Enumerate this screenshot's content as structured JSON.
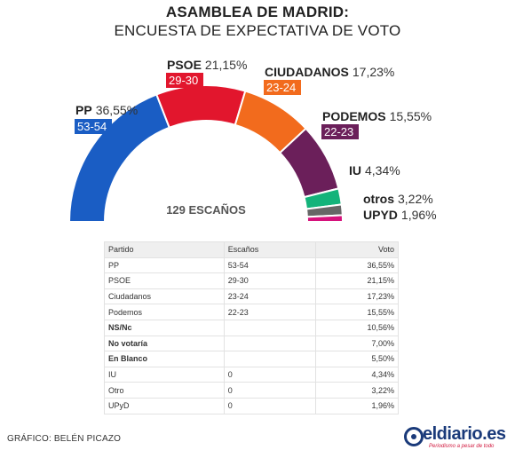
{
  "header": {
    "title": "ASAMBLEA DE MADRID:",
    "subtitle": "ENCUESTA DE EXPECTATIVA DE VOTO"
  },
  "chart_data": {
    "type": "parliament-semicircle",
    "total_label": "129 ESCAÑOS",
    "total_seats": 129,
    "series": [
      {
        "name": "PP",
        "seats": "53-54",
        "seat_share": 53.5,
        "vote": "36,55%",
        "color": "#1a5dc4"
      },
      {
        "name": "PSOE",
        "seats": "29-30",
        "seat_share": 29.5,
        "vote": "21,15%",
        "color": "#e2162d"
      },
      {
        "name": "CIUDADANOS",
        "seats": "23-24",
        "seat_share": 23.5,
        "vote": "17,23%",
        "color": "#f26b1d"
      },
      {
        "name": "PODEMOS",
        "seats": "22-23",
        "seat_share": 22.5,
        "vote": "15,55%",
        "color": "#6b1f5a"
      },
      {
        "name": "IU",
        "seats": "",
        "seat_share": 5.3,
        "vote": "4,34%",
        "color": "#13b37a"
      },
      {
        "name": "otros",
        "seats": "",
        "seat_share": 3.5,
        "vote": "3,22%",
        "color": "#666666"
      },
      {
        "name": "UPYD",
        "seats": "",
        "seat_share": 2.2,
        "vote": "1,96%",
        "color": "#d6127c"
      }
    ]
  },
  "table": {
    "headers": [
      "Partido",
      "Escaños",
      "Voto"
    ],
    "rows": [
      {
        "party": "PP",
        "seats": "53-54",
        "vote": "36,55%",
        "bold": false
      },
      {
        "party": "PSOE",
        "seats": "29-30",
        "vote": "21,15%",
        "bold": false
      },
      {
        "party": "Ciudadanos",
        "seats": "23-24",
        "vote": "17,23%",
        "bold": false
      },
      {
        "party": "Podemos",
        "seats": "22-23",
        "vote": "15,55%",
        "bold": false
      },
      {
        "party": "NS/Nc",
        "seats": "",
        "vote": "10,56%",
        "bold": true
      },
      {
        "party": "No votaría",
        "seats": "",
        "vote": "7,00%",
        "bold": true
      },
      {
        "party": "En Blanco",
        "seats": "",
        "vote": "5,50%",
        "bold": true
      },
      {
        "party": "IU",
        "seats": "0",
        "vote": "4,34%",
        "bold": false
      },
      {
        "party": "Otro",
        "seats": "0",
        "vote": "3,22%",
        "bold": false
      },
      {
        "party": "UPyD",
        "seats": "0",
        "vote": "1,96%",
        "bold": false
      }
    ]
  },
  "footer": {
    "credit": "GRÁFICO: BELÉN PICAZO",
    "logo_text": "eldiario.es",
    "logo_slogan": "Periodismo a pesar de todo"
  },
  "icons": {
    "logo_mark": "eldiario-logo-icon"
  }
}
